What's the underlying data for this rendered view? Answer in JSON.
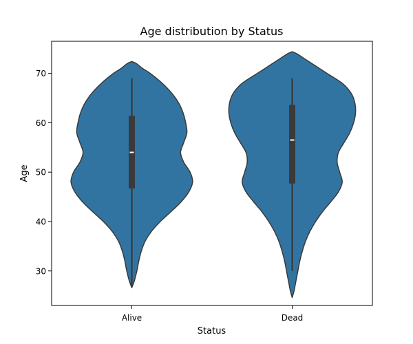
{
  "chart_data": {
    "type": "violin",
    "title": "Age distribution by Status",
    "xlabel": "Status",
    "ylabel": "Age",
    "categories": [
      "Alive",
      "Dead"
    ],
    "ylim": [
      23.0,
      76.5
    ],
    "yticks": [
      30,
      40,
      50,
      60,
      70
    ],
    "grid": false,
    "legend": "none",
    "colors": {
      "violin_fill": "#3274a1",
      "outline": "#3a3a3a",
      "box": "#3a3a3a",
      "median": "#ffffff"
    },
    "series": [
      {
        "category": "Alive",
        "kde_range": [
          26.6,
          72.4
        ],
        "whisker": [
          27,
          69
        ],
        "q1": 46.7,
        "median": 54.0,
        "q3": 61.4,
        "density": [
          [
            26.6,
            0.0
          ],
          [
            28,
            0.04
          ],
          [
            30,
            0.08
          ],
          [
            32,
            0.11
          ],
          [
            34,
            0.15
          ],
          [
            36,
            0.21
          ],
          [
            38,
            0.31
          ],
          [
            40,
            0.45
          ],
          [
            42,
            0.62
          ],
          [
            44,
            0.78
          ],
          [
            46,
            0.9
          ],
          [
            48,
            0.96
          ],
          [
            50,
            0.92
          ],
          [
            52,
            0.82
          ],
          [
            54,
            0.77
          ],
          [
            56,
            0.82
          ],
          [
            58,
            0.87
          ],
          [
            60,
            0.85
          ],
          [
            62,
            0.81
          ],
          [
            64,
            0.74
          ],
          [
            66,
            0.63
          ],
          [
            68,
            0.48
          ],
          [
            70,
            0.29
          ],
          [
            71,
            0.17
          ],
          [
            72,
            0.07
          ],
          [
            72.4,
            0.0
          ]
        ]
      },
      {
        "category": "Dead",
        "kde_range": [
          24.6,
          74.4
        ],
        "whisker": [
          30,
          69
        ],
        "q1": 47.7,
        "median": 56.5,
        "q3": 63.6,
        "density": [
          [
            24.6,
            0.0
          ],
          [
            26,
            0.03
          ],
          [
            28,
            0.06
          ],
          [
            30,
            0.09
          ],
          [
            32,
            0.12
          ],
          [
            34,
            0.16
          ],
          [
            36,
            0.21
          ],
          [
            38,
            0.28
          ],
          [
            40,
            0.37
          ],
          [
            42,
            0.48
          ],
          [
            44,
            0.61
          ],
          [
            46,
            0.73
          ],
          [
            48,
            0.79
          ],
          [
            50,
            0.75
          ],
          [
            52,
            0.71
          ],
          [
            54,
            0.73
          ],
          [
            56,
            0.82
          ],
          [
            58,
            0.91
          ],
          [
            60,
            0.97
          ],
          [
            62,
            1.0
          ],
          [
            64,
            0.99
          ],
          [
            66,
            0.93
          ],
          [
            68,
            0.79
          ],
          [
            70,
            0.55
          ],
          [
            72,
            0.31
          ],
          [
            73,
            0.19
          ],
          [
            74,
            0.07
          ],
          [
            74.4,
            0.0
          ]
        ]
      }
    ]
  }
}
